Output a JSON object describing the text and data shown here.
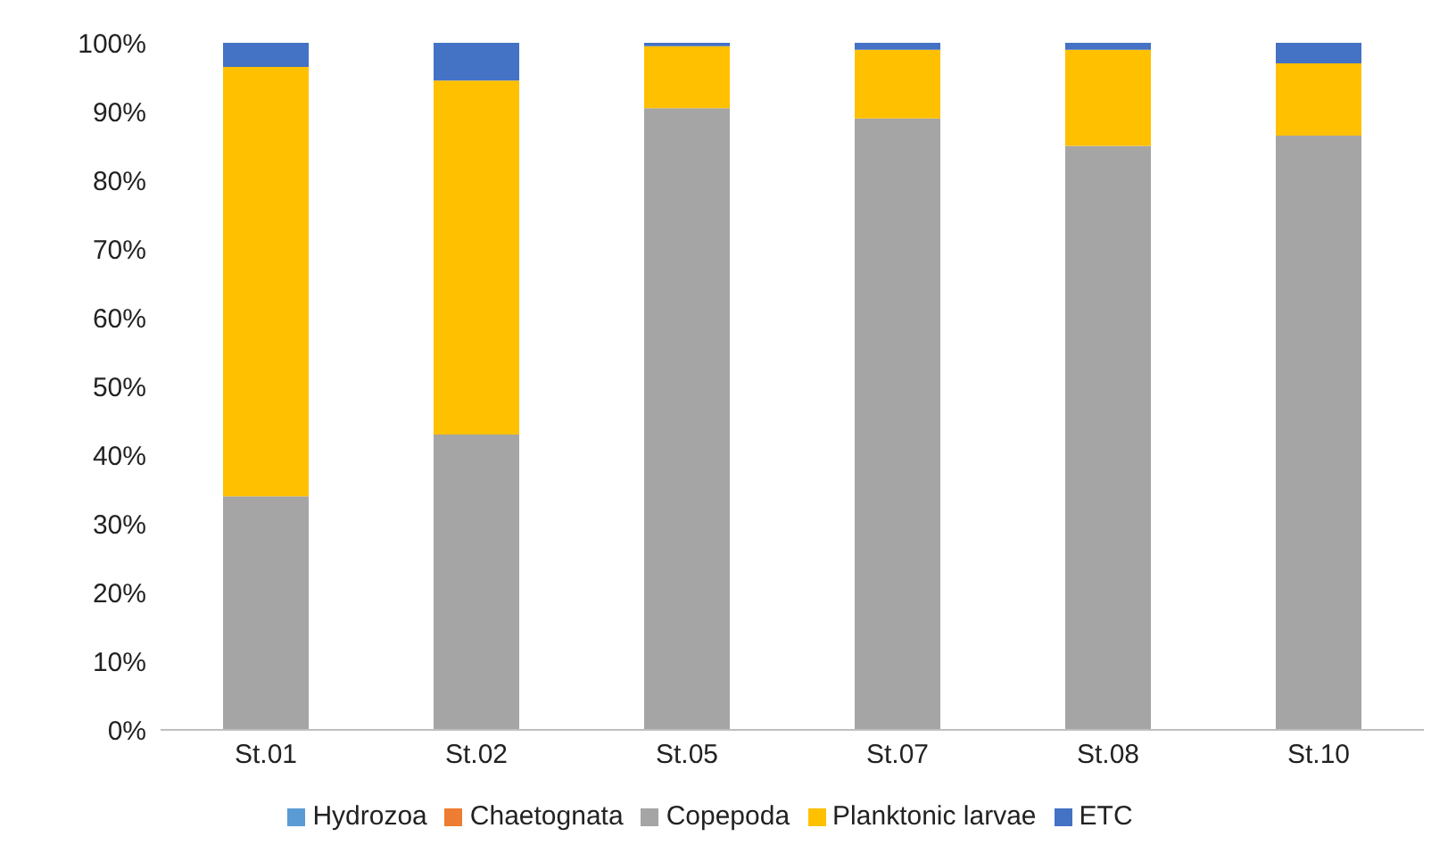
{
  "chart_data": {
    "type": "bar",
    "stacked": true,
    "categories": [
      "St.01",
      "St.02",
      "St.05",
      "St.07",
      "St.08",
      "St.10"
    ],
    "series": [
      {
        "name": "Hydrozoa",
        "color": "#5b9bd5",
        "values": [
          0,
          0,
          0,
          0,
          0,
          0
        ]
      },
      {
        "name": "Chaetognata",
        "color": "#ed7d31",
        "values": [
          0,
          0,
          0,
          0,
          0,
          0
        ]
      },
      {
        "name": "Copepoda",
        "color": "#a5a5a5",
        "values": [
          34,
          43,
          90.5,
          89,
          85,
          86.5
        ]
      },
      {
        "name": "Planktonic larvae",
        "color": "#ffc000",
        "values": [
          62.5,
          51.5,
          9,
          10,
          14,
          10.5
        ]
      },
      {
        "name": "ETC",
        "color": "#4472c4",
        "values": [
          3.5,
          5.5,
          0.5,
          1,
          1,
          3
        ]
      }
    ],
    "ylim": [
      0,
      100
    ],
    "yticks": [
      {
        "value": 0,
        "label": "0%"
      },
      {
        "value": 10,
        "label": "10%"
      },
      {
        "value": 20,
        "label": "20%"
      },
      {
        "value": 30,
        "label": "30%"
      },
      {
        "value": 40,
        "label": "40%"
      },
      {
        "value": 50,
        "label": "50%"
      },
      {
        "value": 60,
        "label": "60%"
      },
      {
        "value": 70,
        "label": "70%"
      },
      {
        "value": 80,
        "label": "80%"
      },
      {
        "value": 90,
        "label": "90%"
      },
      {
        "value": 100,
        "label": "100%"
      }
    ],
    "grid": false,
    "legend": "bottom"
  }
}
